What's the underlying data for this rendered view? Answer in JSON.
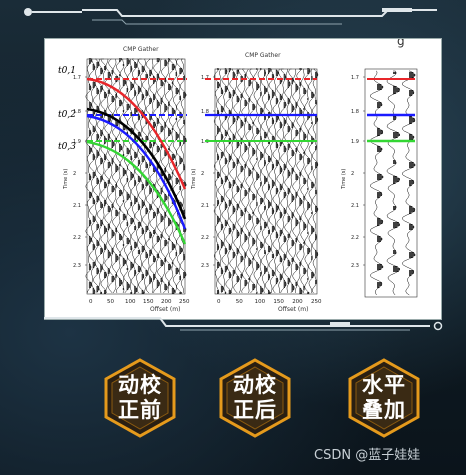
{
  "figure": {
    "left": {
      "title": "CMP Gather",
      "xlabel": "Offset (m)",
      "ylabel": "Time (s)",
      "xticks": [
        "0",
        "50",
        "100",
        "150",
        "200",
        "250"
      ],
      "yticks": [
        "1.7",
        "1.8",
        "1.9",
        "2",
        "2.1",
        "2.2",
        "2.3"
      ],
      "t_labels": [
        "t0,1",
        "t0,2",
        "t0,3"
      ]
    },
    "middle": {
      "title": "CMP Gather",
      "xlabel": "Offset (m)",
      "ylabel": "Time (s)",
      "xticks": [
        "0",
        "50",
        "100",
        "150",
        "200",
        "250"
      ],
      "yticks": [
        "1.7",
        "1.8",
        "1.9",
        "2",
        "2.1",
        "2.2",
        "2.3"
      ]
    },
    "right": {
      "ylabel": "Time (s)",
      "yticks": [
        "1.7",
        "1.8",
        "1.9",
        "2",
        "2.1",
        "2.2",
        "2.3"
      ]
    },
    "corner_mark": "g"
  },
  "buttons": [
    {
      "line1": "动校",
      "line2": "正前"
    },
    {
      "line1": "动校",
      "line2": "正后"
    },
    {
      "line1": "水平",
      "line2": "叠加"
    }
  ],
  "watermark": "CSDN @蓝子娃娃",
  "colors": {
    "red": "#e8262a",
    "blue": "#1a1aff",
    "green": "#33d633",
    "gold": "#e59a1c"
  }
}
